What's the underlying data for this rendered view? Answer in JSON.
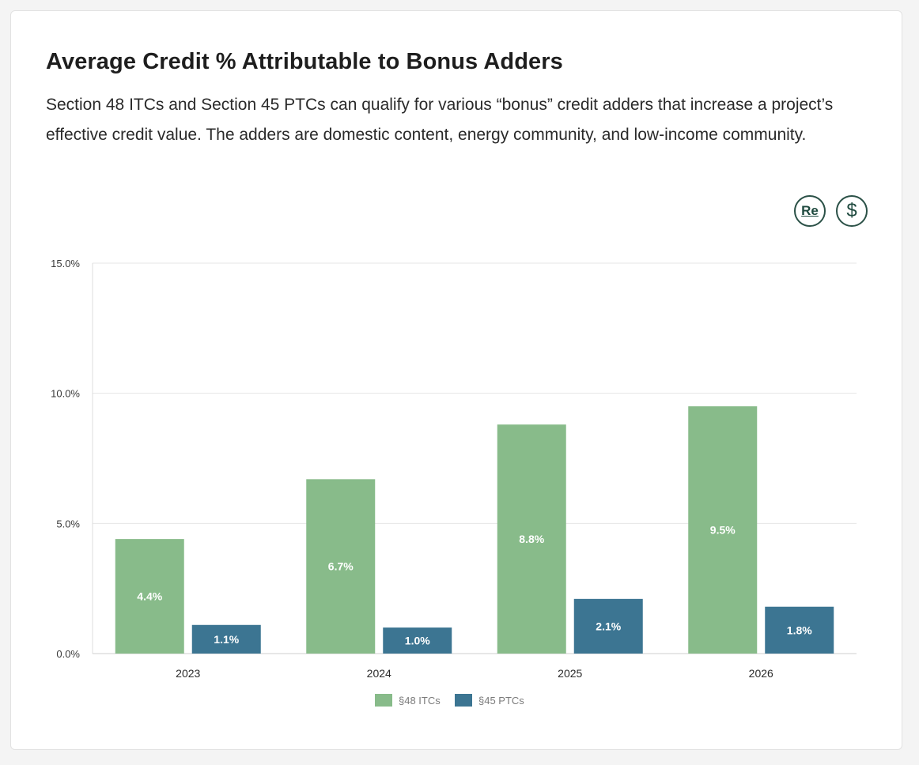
{
  "header": {
    "title": "Average Credit % Attributable to Bonus Adders",
    "description": "Section 48 ITCs and Section 45 PTCs can qualify for various “bonus” credit adders that increase a project’s effective credit value. The adders are domestic content, energy community, and low-income community."
  },
  "toolbar": {
    "re_label": "Re",
    "dollar_label": "$",
    "re_icon": "re-icon",
    "dollar_icon": "dollar-icon"
  },
  "chart_data": {
    "type": "bar",
    "categories": [
      "2023",
      "2024",
      "2025",
      "2026"
    ],
    "series": [
      {
        "name": "§48 ITCs",
        "values": [
          4.4,
          6.7,
          8.8,
          9.5
        ],
        "labels": [
          "4.4%",
          "6.7%",
          "8.8%",
          "9.5%"
        ],
        "color": "#88bb8a"
      },
      {
        "name": "§45 PTCs",
        "values": [
          1.1,
          1.0,
          2.1,
          1.8
        ],
        "labels": [
          "1.1%",
          "1.0%",
          "2.1%",
          "1.8%"
        ],
        "color": "#3c7592"
      }
    ],
    "y_ticks": [
      0,
      5,
      10,
      15
    ],
    "y_tick_labels": [
      "0.0%",
      "5.0%",
      "10.0%",
      "15.0%"
    ],
    "ylim": [
      0,
      15
    ],
    "grid": true,
    "legend_position": "bottom-center",
    "title": "",
    "xlabel": "",
    "ylabel": ""
  }
}
